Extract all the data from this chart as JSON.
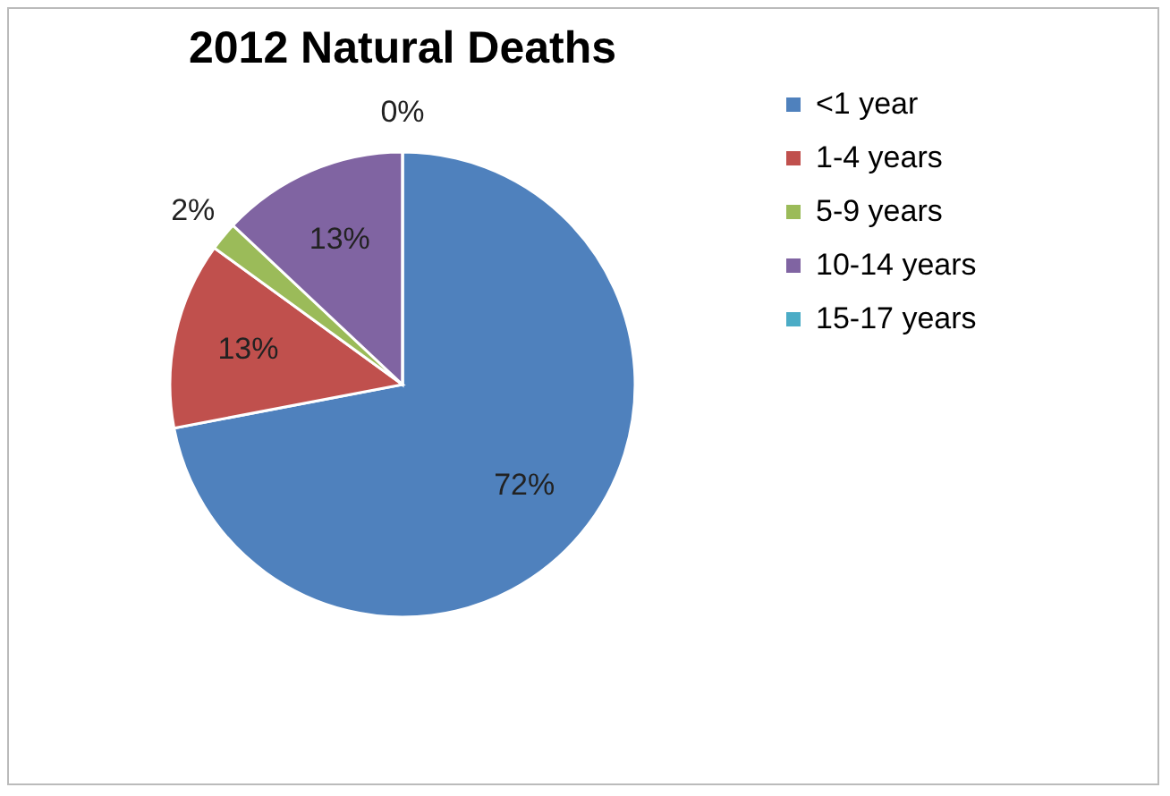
{
  "chart_data": {
    "type": "pie",
    "title": "2012 Natural Deaths",
    "categories": [
      "<1 year",
      "1-4 years",
      "5-9 years",
      "10-14 years",
      "15-17 years"
    ],
    "values": [
      72,
      13,
      2,
      13,
      0
    ],
    "colors": [
      "#4f81bd",
      "#c0504d",
      "#9bbb59",
      "#8064a2",
      "#4bacc6"
    ],
    "value_labels": [
      "72%",
      "13%",
      "2%",
      "13%",
      "0%"
    ],
    "legend": "right"
  }
}
